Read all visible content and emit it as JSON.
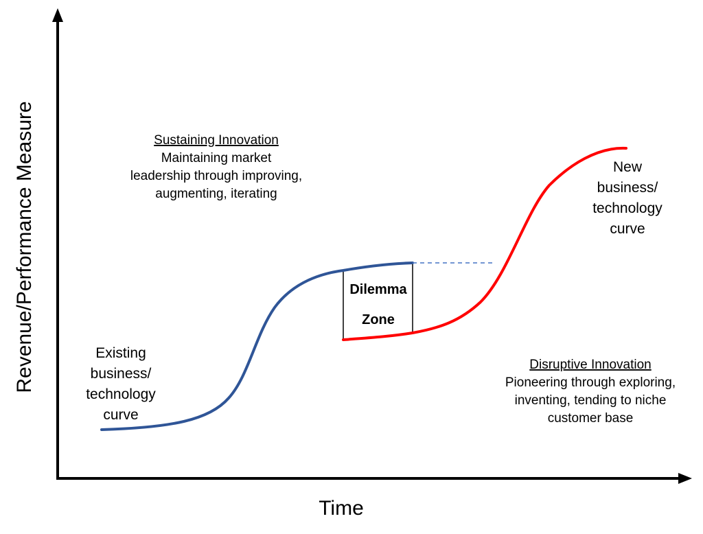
{
  "axes": {
    "x_label": "Time",
    "y_label": "Revenue/Performance Measure"
  },
  "sustaining": {
    "title": "Sustaining Innovation",
    "lines": [
      "Maintaining market",
      "leadership through improving,",
      "augmenting, iterating"
    ]
  },
  "disruptive": {
    "title": "Disruptive Innovation",
    "lines": [
      "Pioneering through exploring,",
      "inventing, tending to niche",
      "customer base"
    ]
  },
  "existing_curve": {
    "lines": [
      "Existing",
      "business/",
      "technology",
      "curve"
    ],
    "color": "#2F5597"
  },
  "new_curve": {
    "lines": [
      "New",
      "business/",
      "technology",
      "curve"
    ],
    "color": "#FF0000"
  },
  "dilemma_zone": {
    "lines": [
      "Dilemma",
      "Zone"
    ]
  },
  "colors": {
    "axis": "#000000",
    "projection_dash": "#4472C4"
  }
}
